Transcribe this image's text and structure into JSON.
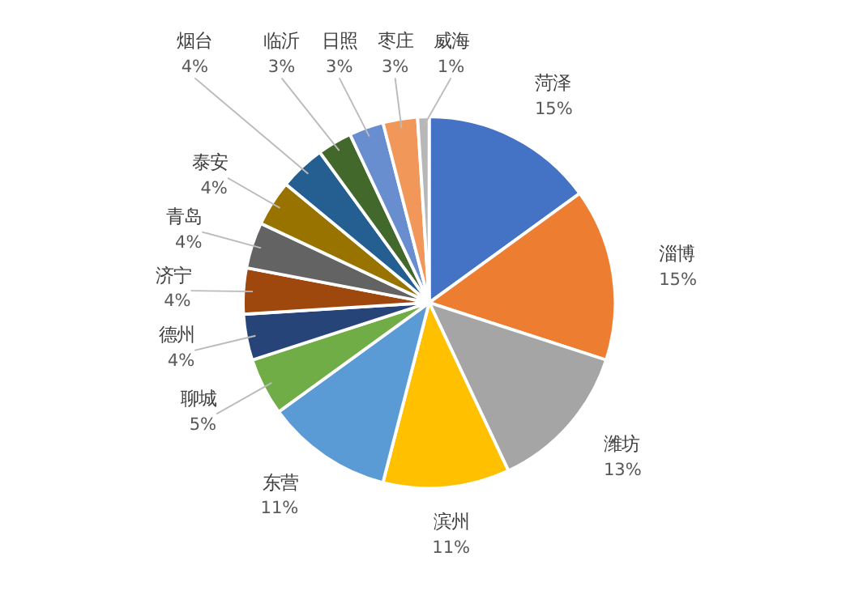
{
  "chart_data": {
    "type": "pie",
    "categories": [
      "菏泽",
      "淄博",
      "潍坊",
      "滨州",
      "东营",
      "聊城",
      "德州",
      "济宁",
      "青岛",
      "泰安",
      "烟台",
      "临沂",
      "日照",
      "枣庄",
      "威海"
    ],
    "values": [
      15,
      15,
      13,
      11,
      11,
      5,
      4,
      4,
      4,
      4,
      4,
      3,
      3,
      3,
      1
    ],
    "colors": [
      "#4472c4",
      "#ed7d31",
      "#a5a5a5",
      "#ffc000",
      "#5b9bd5",
      "#70ad47",
      "#264478",
      "#9e480e",
      "#636363",
      "#997300",
      "#255e91",
      "#43682b",
      "#698ed0",
      "#f1975a",
      "#b7b7b7"
    ],
    "value_labels": [
      "15%",
      "15%",
      "13%",
      "11%",
      "11%",
      "5%",
      "4%",
      "4%",
      "4%",
      "4%",
      "4%",
      "3%",
      "3%",
      "3%",
      "1%"
    ]
  }
}
